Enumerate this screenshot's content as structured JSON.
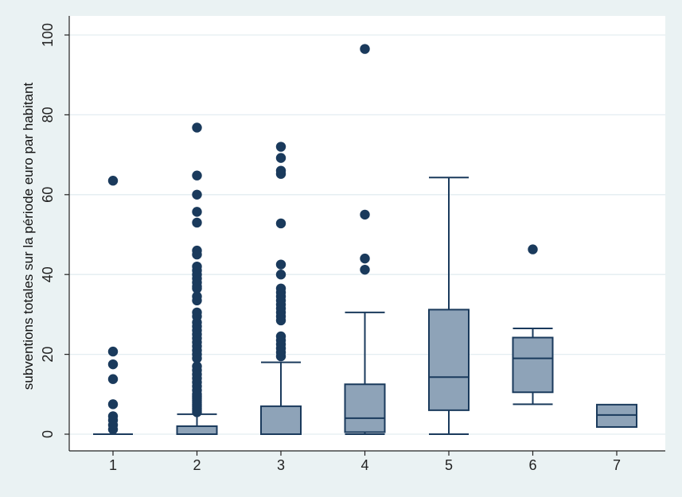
{
  "chart_data": {
    "type": "boxplot",
    "title": "",
    "xlabel": "",
    "ylabel": "subventions totales sur la période euro par habitant",
    "ylim": [
      0,
      100
    ],
    "yticks": [
      0,
      20,
      40,
      60,
      80,
      100
    ],
    "categories": [
      "1",
      "2",
      "3",
      "4",
      "5",
      "6",
      "7"
    ],
    "grid": true,
    "colors": {
      "box_fill": "#8ea3b8",
      "box_stroke": "#1a3a5c",
      "outlier": "#1a3a5c",
      "plot_bg": "#ffffff",
      "page_bg": "#eaf2f3",
      "grid": "#e3edf1"
    },
    "boxes": [
      {
        "category": "1",
        "q1": 0,
        "median": 0,
        "q3": 0,
        "whisker_low": 0,
        "whisker_high": 0,
        "outliers": [
          63.5,
          20.7,
          17.5,
          13.8,
          7.5,
          4.5,
          3.5,
          2.3,
          1.2
        ]
      },
      {
        "category": "2",
        "q1": 0,
        "median": 0,
        "q3": 2,
        "whisker_low": 0,
        "whisker_high": 5,
        "outliers": [
          76.8,
          64.8,
          60,
          55.7,
          53,
          46,
          45,
          42,
          41,
          40,
          39,
          38,
          37,
          36.5,
          34.5,
          33.5,
          30.5,
          29.5,
          28,
          27,
          26,
          25,
          24,
          23,
          22,
          21,
          20,
          19,
          17,
          16,
          15,
          14,
          13,
          12,
          11,
          10,
          9.5,
          9,
          8.5,
          8,
          7.5,
          7,
          6.5,
          6,
          5.5
        ]
      },
      {
        "category": "3",
        "q1": 0,
        "median": 0,
        "q3": 7,
        "whisker_low": 0,
        "whisker_high": 18,
        "outliers": [
          72,
          69.2,
          66,
          65.2,
          52.8,
          42.5,
          40,
          36.5,
          35.5,
          34.5,
          33.5,
          32.5,
          31.5,
          30.5,
          29.5,
          28.5,
          24.5,
          23.5,
          22.5,
          21.5,
          20.5,
          19.5
        ]
      },
      {
        "category": "4",
        "q1": 0.5,
        "median": 4,
        "q3": 12.5,
        "whisker_low": 0,
        "whisker_high": 30.5,
        "outliers": [
          96.5,
          55,
          44,
          41.2
        ]
      },
      {
        "category": "5",
        "q1": 6,
        "median": 14.3,
        "q3": 31.2,
        "whisker_low": 0,
        "whisker_high": 64.3,
        "outliers": []
      },
      {
        "category": "6",
        "q1": 10.5,
        "median": 19,
        "q3": 24.2,
        "whisker_low": 7.5,
        "whisker_high": 26.5,
        "outliers": [
          46.3
        ]
      },
      {
        "category": "7",
        "q1": 1.8,
        "median": 4.8,
        "q3": 7.4,
        "whisker_low": 1.8,
        "whisker_high": 7.4,
        "outliers": []
      }
    ]
  }
}
